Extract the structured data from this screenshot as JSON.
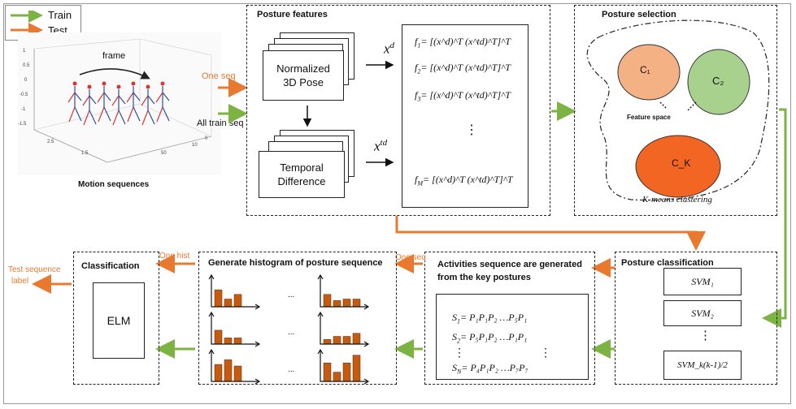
{
  "legend": {
    "train": "Train",
    "test": "Test"
  },
  "motion": {
    "caption": "Motion sequences",
    "frame_label": "frame",
    "ticks_y": [
      "1",
      "0.5",
      "0",
      "-0.5",
      "-1",
      "-1.5"
    ],
    "ticks_x": [
      "2.5",
      "1.5"
    ],
    "ticks_z": [
      "50",
      "10",
      "0"
    ]
  },
  "inputs": {
    "one_seq": "One seq",
    "all_train_seq": "All train seq"
  },
  "posture_features": {
    "title": "Posture features",
    "card1": [
      "Normalized",
      "3D Pose"
    ],
    "card2": [
      "Temporal",
      "Difference"
    ],
    "xd": "x",
    "xd_sup": "d",
    "xtd": "x",
    "xtd_sup": "td",
    "formulas": [
      {
        "lhs": "f",
        "sub": "1",
        "rhs": "= [(x^d)^T (x^td)^T]^T"
      },
      {
        "lhs": "f",
        "sub": "2",
        "rhs": "= [(x^d)^T (x^td)^T]^T"
      },
      {
        "lhs": "f",
        "sub": "3",
        "rhs": "= [(x^d)^T (x^td)^T]^T"
      },
      {
        "lhs": "f",
        "sub": "M",
        "rhs": "= [(x^d)^T (x^td)^T]^T"
      }
    ],
    "vdots": "⋮"
  },
  "posture_selection": {
    "title": "Posture selection",
    "c1": "C₁",
    "c2": "C₂",
    "ck": "C_K",
    "feature_space": "Feature space",
    "method": "K-means clustering"
  },
  "posture_classification": {
    "title": "Posture classification",
    "svms": [
      "SVM₁",
      "SVM₂",
      "SVM_k(k-1)/2"
    ],
    "vdots": "⋮"
  },
  "activities": {
    "title_line1": "Activities sequence are generated",
    "title_line2": "from the key postures",
    "rows": [
      {
        "lhs": "S",
        "sub": "1",
        "rhs": "= P₁P₁P₂ …P₅P₁"
      },
      {
        "lhs": "S",
        "sub": "2",
        "rhs": "= P₅P₁P₂ …P₁P₁"
      },
      {
        "lhs": "S",
        "sub": "N",
        "rhs": "= P₄P₁P₂ …P₇P₇"
      }
    ],
    "vdots": "⋮",
    "one_seq": "One seq"
  },
  "histogram": {
    "title": "Generate histogram of posture sequence",
    "ellipsis": "...",
    "one_hist": "One hist",
    "hists": [
      [
        0.55,
        0.25,
        0.4
      ],
      [
        0.4,
        0.2,
        0.25,
        0.25
      ],
      [
        0.45,
        0.2,
        0.2
      ],
      [
        0.15,
        0.25,
        0.25,
        0.35
      ],
      [
        0.55,
        0.7,
        0.5
      ],
      [
        0.6,
        0.3,
        0.6,
        0.85
      ]
    ]
  },
  "classification": {
    "title": "Classification",
    "elm": "ELM",
    "output": [
      "Test sequence",
      "label"
    ]
  },
  "colors": {
    "train": "#7CB342",
    "test": "#E8792F",
    "c1": "#F4B183",
    "c2": "#A9D18E",
    "ck": "#F26522",
    "bar": "#C55A11"
  }
}
